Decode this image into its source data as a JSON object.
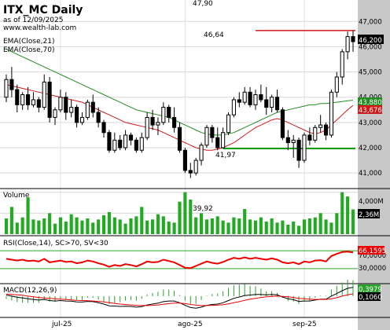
{
  "header": {
    "title": "ITX_MC Daily",
    "date": "as of 12/09/2025",
    "site": "www.wealth-lab.com",
    "ema_labels": [
      "EMA(Close,21)",
      "EMA(Close,70)"
    ]
  },
  "annotations": {
    "high_top": "47,90",
    "resistance": "46,64",
    "support": "41,97",
    "volume_peak": "39,92"
  },
  "axis": {
    "price_ticks": [
      "47,000",
      "46,000",
      "45,000",
      "44,000",
      "43,000",
      "42,000",
      "41,000"
    ],
    "volume_ticks": [
      "4,000M",
      "2,000M"
    ],
    "rsi_ticks": [
      "70,0000",
      "30,0000"
    ],
    "x_ticks": [
      "jul-25",
      "ago-25",
      "sep-25"
    ]
  },
  "badges": {
    "close": "46,200",
    "ema21": "43,880",
    "ema70": "43,676",
    "volume": "2,36M",
    "rsi": "66,1595",
    "macd": "0,3979",
    "signal": "0,1060"
  },
  "panes": {
    "volume": "Volume",
    "rsi": "RSI(Close,14), SC>70, SV<30",
    "macd": "MACD(12,26,9)"
  },
  "colors": {
    "up": "#2ca02c",
    "down": "#000000",
    "ema21": "#228b22",
    "ema70": "#d11a1a",
    "level": "#d11a1a",
    "support": "#12a012",
    "volume": "#22aa22",
    "rsi": "#ee0000",
    "macd": "#000000",
    "macd_signal": "#ee0000",
    "right_axis_bg": "#c8c8c8"
  },
  "chart_data": {
    "type": "candlestick",
    "price_range": [
      40.6,
      47.6
    ],
    "price_bars": [
      [
        44.0,
        44.9,
        43.8,
        44.7
      ],
      [
        44.7,
        45.2,
        44.0,
        44.3
      ],
      [
        44.3,
        44.5,
        43.4,
        43.7
      ],
      [
        43.7,
        44.2,
        43.5,
        44.1
      ],
      [
        44.1,
        44.4,
        43.5,
        43.7
      ],
      [
        43.7,
        44.2,
        43.6,
        43.9
      ],
      [
        43.9,
        44.0,
        43.4,
        43.6
      ],
      [
        43.6,
        44.9,
        43.5,
        44.6
      ],
      [
        44.6,
        44.8,
        43.0,
        43.2
      ],
      [
        43.2,
        43.6,
        42.9,
        43.5
      ],
      [
        43.5,
        44.3,
        43.4,
        44.0
      ],
      [
        44.0,
        44.2,
        43.1,
        43.4
      ],
      [
        43.4,
        43.9,
        43.2,
        43.6
      ],
      [
        43.6,
        43.7,
        42.8,
        43.0
      ],
      [
        43.0,
        43.4,
        42.9,
        43.2
      ],
      [
        43.2,
        43.9,
        43.1,
        43.8
      ],
      [
        43.8,
        44.1,
        43.2,
        43.4
      ],
      [
        43.4,
        43.6,
        42.8,
        43.0
      ],
      [
        43.0,
        43.1,
        42.4,
        42.6
      ],
      [
        42.6,
        42.7,
        41.8,
        41.9
      ],
      [
        41.9,
        42.6,
        41.8,
        42.3
      ],
      [
        42.3,
        42.5,
        41.9,
        42.0
      ],
      [
        42.0,
        42.7,
        41.9,
        42.5
      ],
      [
        42.5,
        42.6,
        42.1,
        42.3
      ],
      [
        42.3,
        42.4,
        41.8,
        41.9
      ],
      [
        41.9,
        42.6,
        41.8,
        42.4
      ],
      [
        42.4,
        43.4,
        42.3,
        43.2
      ],
      [
        43.2,
        43.5,
        42.7,
        42.9
      ],
      [
        42.9,
        43.2,
        42.5,
        43.0
      ],
      [
        43.0,
        43.8,
        42.9,
        43.6
      ],
      [
        43.6,
        43.7,
        43.0,
        43.2
      ],
      [
        43.2,
        43.6,
        42.6,
        42.8
      ],
      [
        42.8,
        43.0,
        41.8,
        41.9
      ],
      [
        41.9,
        42.0,
        41.0,
        41.1
      ],
      [
        41.1,
        41.4,
        40.8,
        41.0
      ],
      [
        41.0,
        41.6,
        40.9,
        41.5
      ],
      [
        41.5,
        42.2,
        41.3,
        42.1
      ],
      [
        42.1,
        42.9,
        42.0,
        42.8
      ],
      [
        42.8,
        42.9,
        42.2,
        42.4
      ],
      [
        42.4,
        42.8,
        41.9,
        42.0
      ],
      [
        42.0,
        42.8,
        41.97,
        42.6
      ],
      [
        42.6,
        43.4,
        42.5,
        43.3
      ],
      [
        43.3,
        44.0,
        43.2,
        43.9
      ],
      [
        43.9,
        44.2,
        43.6,
        43.8
      ],
      [
        43.8,
        44.4,
        43.7,
        44.2
      ],
      [
        44.2,
        44.4,
        43.6,
        43.7
      ],
      [
        43.7,
        44.3,
        43.5,
        44.1
      ],
      [
        44.1,
        44.5,
        43.8,
        43.9
      ],
      [
        43.9,
        44.4,
        43.3,
        43.6
      ],
      [
        43.6,
        44.1,
        43.4,
        44.0
      ],
      [
        44.0,
        44.3,
        43.4,
        43.5
      ],
      [
        43.5,
        43.6,
        42.3,
        42.4
      ],
      [
        42.4,
        42.7,
        41.9,
        42.2
      ],
      [
        42.2,
        42.5,
        41.6,
        42.3
      ],
      [
        42.3,
        42.4,
        41.2,
        41.5
      ],
      [
        41.5,
        42.6,
        41.4,
        42.5
      ],
      [
        42.5,
        42.8,
        42.1,
        42.3
      ],
      [
        42.3,
        42.9,
        42.2,
        42.8
      ],
      [
        42.8,
        43.3,
        42.6,
        42.9
      ],
      [
        42.9,
        43.0,
        42.3,
        42.5
      ],
      [
        42.5,
        44.3,
        42.4,
        44.2
      ],
      [
        44.2,
        45.0,
        44.0,
        44.8
      ],
      [
        44.8,
        45.9,
        44.5,
        45.8
      ],
      [
        45.8,
        46.6,
        45.5,
        46.4
      ],
      [
        46.4,
        46.64,
        45.8,
        46.2
      ]
    ],
    "ema21": [
      45.9,
      45.8,
      45.7,
      45.6,
      45.5,
      45.4,
      45.3,
      45.2,
      45.1,
      45.0,
      44.9,
      44.8,
      44.7,
      44.6,
      44.5,
      44.4,
      44.3,
      44.2,
      44.1,
      44.0,
      43.9,
      43.8,
      43.7,
      43.6,
      43.5,
      43.45,
      43.4,
      43.35,
      43.3,
      43.25,
      43.2,
      43.1,
      43.0,
      42.9,
      42.8,
      42.7,
      42.6,
      42.55,
      42.5,
      42.5,
      42.5,
      42.55,
      42.6,
      42.7,
      42.8,
      42.9,
      43.0,
      43.1,
      43.2,
      43.3,
      43.4,
      43.45,
      43.5,
      43.55,
      43.6,
      43.65,
      43.7,
      43.7,
      43.75,
      43.75,
      43.78,
      43.8,
      43.83,
      43.86,
      43.88
    ],
    "ema70": [
      44.5,
      44.45,
      44.4,
      44.35,
      44.3,
      44.25,
      44.2,
      44.15,
      44.1,
      44.05,
      44.0,
      43.95,
      43.9,
      43.85,
      43.8,
      43.7,
      43.6,
      43.5,
      43.4,
      43.3,
      43.2,
      43.1,
      43.0,
      42.95,
      42.9,
      42.85,
      42.8,
      42.75,
      42.7,
      42.6,
      42.5,
      42.4,
      42.3,
      42.2,
      42.1,
      42.0,
      41.95,
      41.9,
      41.9,
      41.95,
      42.0,
      42.1,
      42.2,
      42.35,
      42.5,
      42.65,
      42.8,
      42.9,
      43.0,
      43.1,
      43.15,
      43.1,
      43.0,
      42.9,
      42.8,
      42.7,
      42.6,
      42.55,
      42.6,
      42.7,
      42.9,
      43.1,
      43.3,
      43.5,
      43.676
    ],
    "resistance": 46.64,
    "support": 41.97,
    "volume_range": [
      0,
      4.2
    ],
    "volume": [
      1.5,
      2.6,
      1.1,
      1.6,
      3.5,
      1.4,
      1.3,
      1.5,
      2.0,
      1.0,
      1.6,
      1.2,
      1.9,
      1.6,
      1.3,
      1.5,
      1.1,
      1.4,
      1.8,
      2.1,
      1.6,
      1.4,
      1.0,
      1.5,
      1.7,
      2.6,
      1.3,
      1.4,
      1.9,
      1.7,
      1.2,
      1.1,
      3.1,
      4.0,
      3.3,
      1.6,
      2.0,
      1.4,
      1.5,
      1.7,
      1.3,
      1.1,
      1.6,
      1.5,
      2.4,
      1.4,
      1.3,
      1.6,
      1.2,
      1.5,
      1.1,
      1.3,
      0.9,
      1.2,
      0.8,
      1.4,
      1.5,
      1.6,
      2.0,
      1.4,
      1.1,
      2.0,
      4.0,
      3.6,
      2.36
    ],
    "rsi_range": [
      0,
      100
    ],
    "rsi": [
      52,
      50,
      48,
      50,
      47,
      48,
      46,
      52,
      44,
      46,
      48,
      45,
      46,
      42,
      44,
      48,
      46,
      42,
      39,
      34,
      38,
      36,
      40,
      38,
      35,
      40,
      46,
      44,
      45,
      50,
      47,
      44,
      38,
      32,
      31,
      36,
      41,
      46,
      43,
      41,
      45,
      50,
      54,
      52,
      55,
      52,
      54,
      52,
      50,
      53,
      50,
      44,
      42,
      44,
      40,
      46,
      44,
      48,
      49,
      46,
      58,
      63,
      67,
      68,
      66.16
    ],
    "macd_range": [
      -0.9,
      0.5
    ],
    "macd": [
      0.05,
      0.0,
      -0.05,
      -0.08,
      -0.12,
      -0.15,
      -0.18,
      -0.15,
      -0.2,
      -0.22,
      -0.2,
      -0.22,
      -0.23,
      -0.26,
      -0.27,
      -0.24,
      -0.25,
      -0.3,
      -0.36,
      -0.44,
      -0.45,
      -0.47,
      -0.46,
      -0.47,
      -0.5,
      -0.48,
      -0.4,
      -0.36,
      -0.32,
      -0.25,
      -0.22,
      -0.22,
      -0.3,
      -0.42,
      -0.52,
      -0.55,
      -0.5,
      -0.42,
      -0.38,
      -0.36,
      -0.3,
      -0.2,
      -0.1,
      -0.04,
      0.03,
      0.05,
      0.08,
      0.08,
      0.06,
      0.08,
      0.06,
      -0.04,
      -0.12,
      -0.16,
      -0.24,
      -0.22,
      -0.22,
      -0.18,
      -0.14,
      -0.14,
      0.0,
      0.12,
      0.25,
      0.36,
      0.3979
    ],
    "macd_signal": [
      0.1,
      0.08,
      0.06,
      0.04,
      0.0,
      -0.03,
      -0.06,
      -0.08,
      -0.1,
      -0.12,
      -0.14,
      -0.15,
      -0.17,
      -0.19,
      -0.2,
      -0.21,
      -0.22,
      -0.24,
      -0.26,
      -0.3,
      -0.33,
      -0.36,
      -0.38,
      -0.4,
      -0.42,
      -0.43,
      -0.43,
      -0.42,
      -0.4,
      -0.37,
      -0.34,
      -0.32,
      -0.32,
      -0.34,
      -0.38,
      -0.41,
      -0.43,
      -0.43,
      -0.42,
      -0.41,
      -0.39,
      -0.35,
      -0.3,
      -0.25,
      -0.19,
      -0.14,
      -0.1,
      -0.06,
      -0.03,
      -0.01,
      0.0,
      -0.01,
      -0.03,
      -0.06,
      -0.1,
      -0.12,
      -0.14,
      -0.15,
      -0.15,
      -0.15,
      -0.12,
      -0.07,
      0.0,
      0.06,
      0.106
    ]
  }
}
